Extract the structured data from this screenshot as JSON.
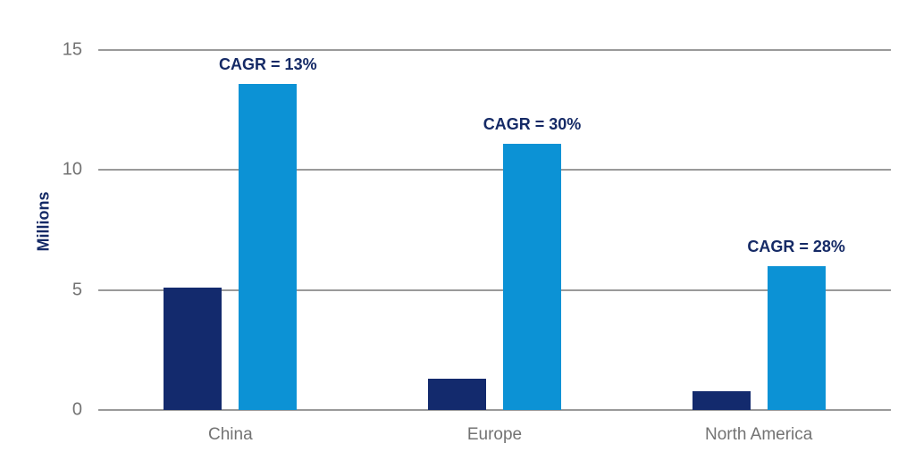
{
  "chart_data": {
    "type": "bar",
    "title": "",
    "xlabel": "",
    "ylabel": "Millions",
    "categories": [
      "China",
      "Europe",
      "North America"
    ],
    "series": [
      {
        "name": "dark-navy",
        "color": "#132a6d",
        "values": [
          5.1,
          1.3,
          0.8
        ]
      },
      {
        "name": "light-blue",
        "color": "#0c92d5",
        "values": [
          13.6,
          11.1,
          6.0
        ]
      }
    ],
    "annotations": [
      "CAGR = 13%",
      "CAGR = 30%",
      "CAGR = 28%"
    ],
    "yticks": [
      0,
      5,
      10,
      15
    ],
    "ylim": [
      0,
      15
    ],
    "grid": true,
    "legend_position": "none"
  },
  "colors": {
    "navy_text": "#152a66",
    "axis_text": "#737373",
    "gridline": "#9a9a9a",
    "background": "#ffffff"
  }
}
